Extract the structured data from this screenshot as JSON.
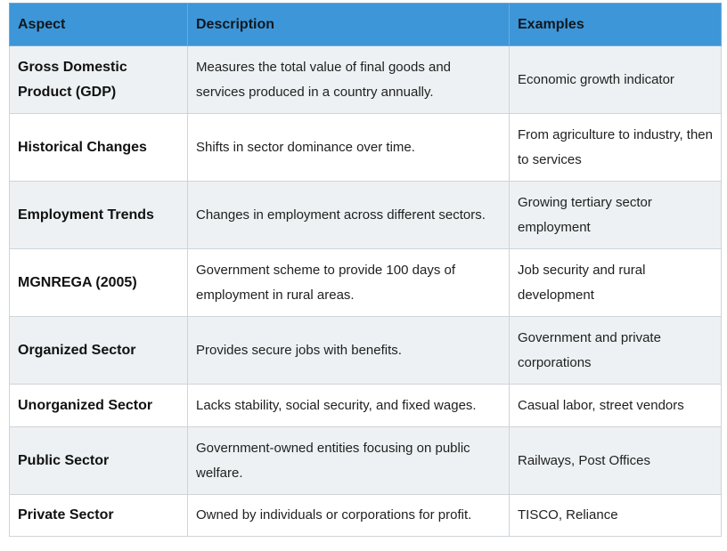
{
  "header": {
    "aspect": "Aspect",
    "description": "Description",
    "examples": "Examples"
  },
  "rows": [
    {
      "aspect": "Gross Domestic Product (GDP)",
      "description": "Measures the total value of final goods and services produced in a country annually.",
      "examples": "Economic growth indicator"
    },
    {
      "aspect": "Historical Changes",
      "description": "Shifts in sector dominance over time.",
      "examples": "From agriculture to industry, then to services"
    },
    {
      "aspect": "Employment Trends",
      "description": "Changes in employment across different sectors.",
      "examples": "Growing tertiary sector employment"
    },
    {
      "aspect": "MGNREGA (2005)",
      "description": "Government scheme to provide 100 days of employment in rural areas.",
      "examples": "Job security and rural development"
    },
    {
      "aspect": "Organized Sector",
      "description": "Provides secure jobs with benefits.",
      "examples": "Government and private corporations"
    },
    {
      "aspect": "Unorganized Sector",
      "description": "Lacks stability, social security, and fixed wages.",
      "examples": "Casual labor, street vendors"
    },
    {
      "aspect": "Public Sector",
      "description": "Government-owned entities focusing on public welfare.",
      "examples": "Railways, Post Offices"
    },
    {
      "aspect": "Private Sector",
      "description": "Owned by individuals or corporations for profit.",
      "examples": "TISCO, Reliance"
    }
  ]
}
